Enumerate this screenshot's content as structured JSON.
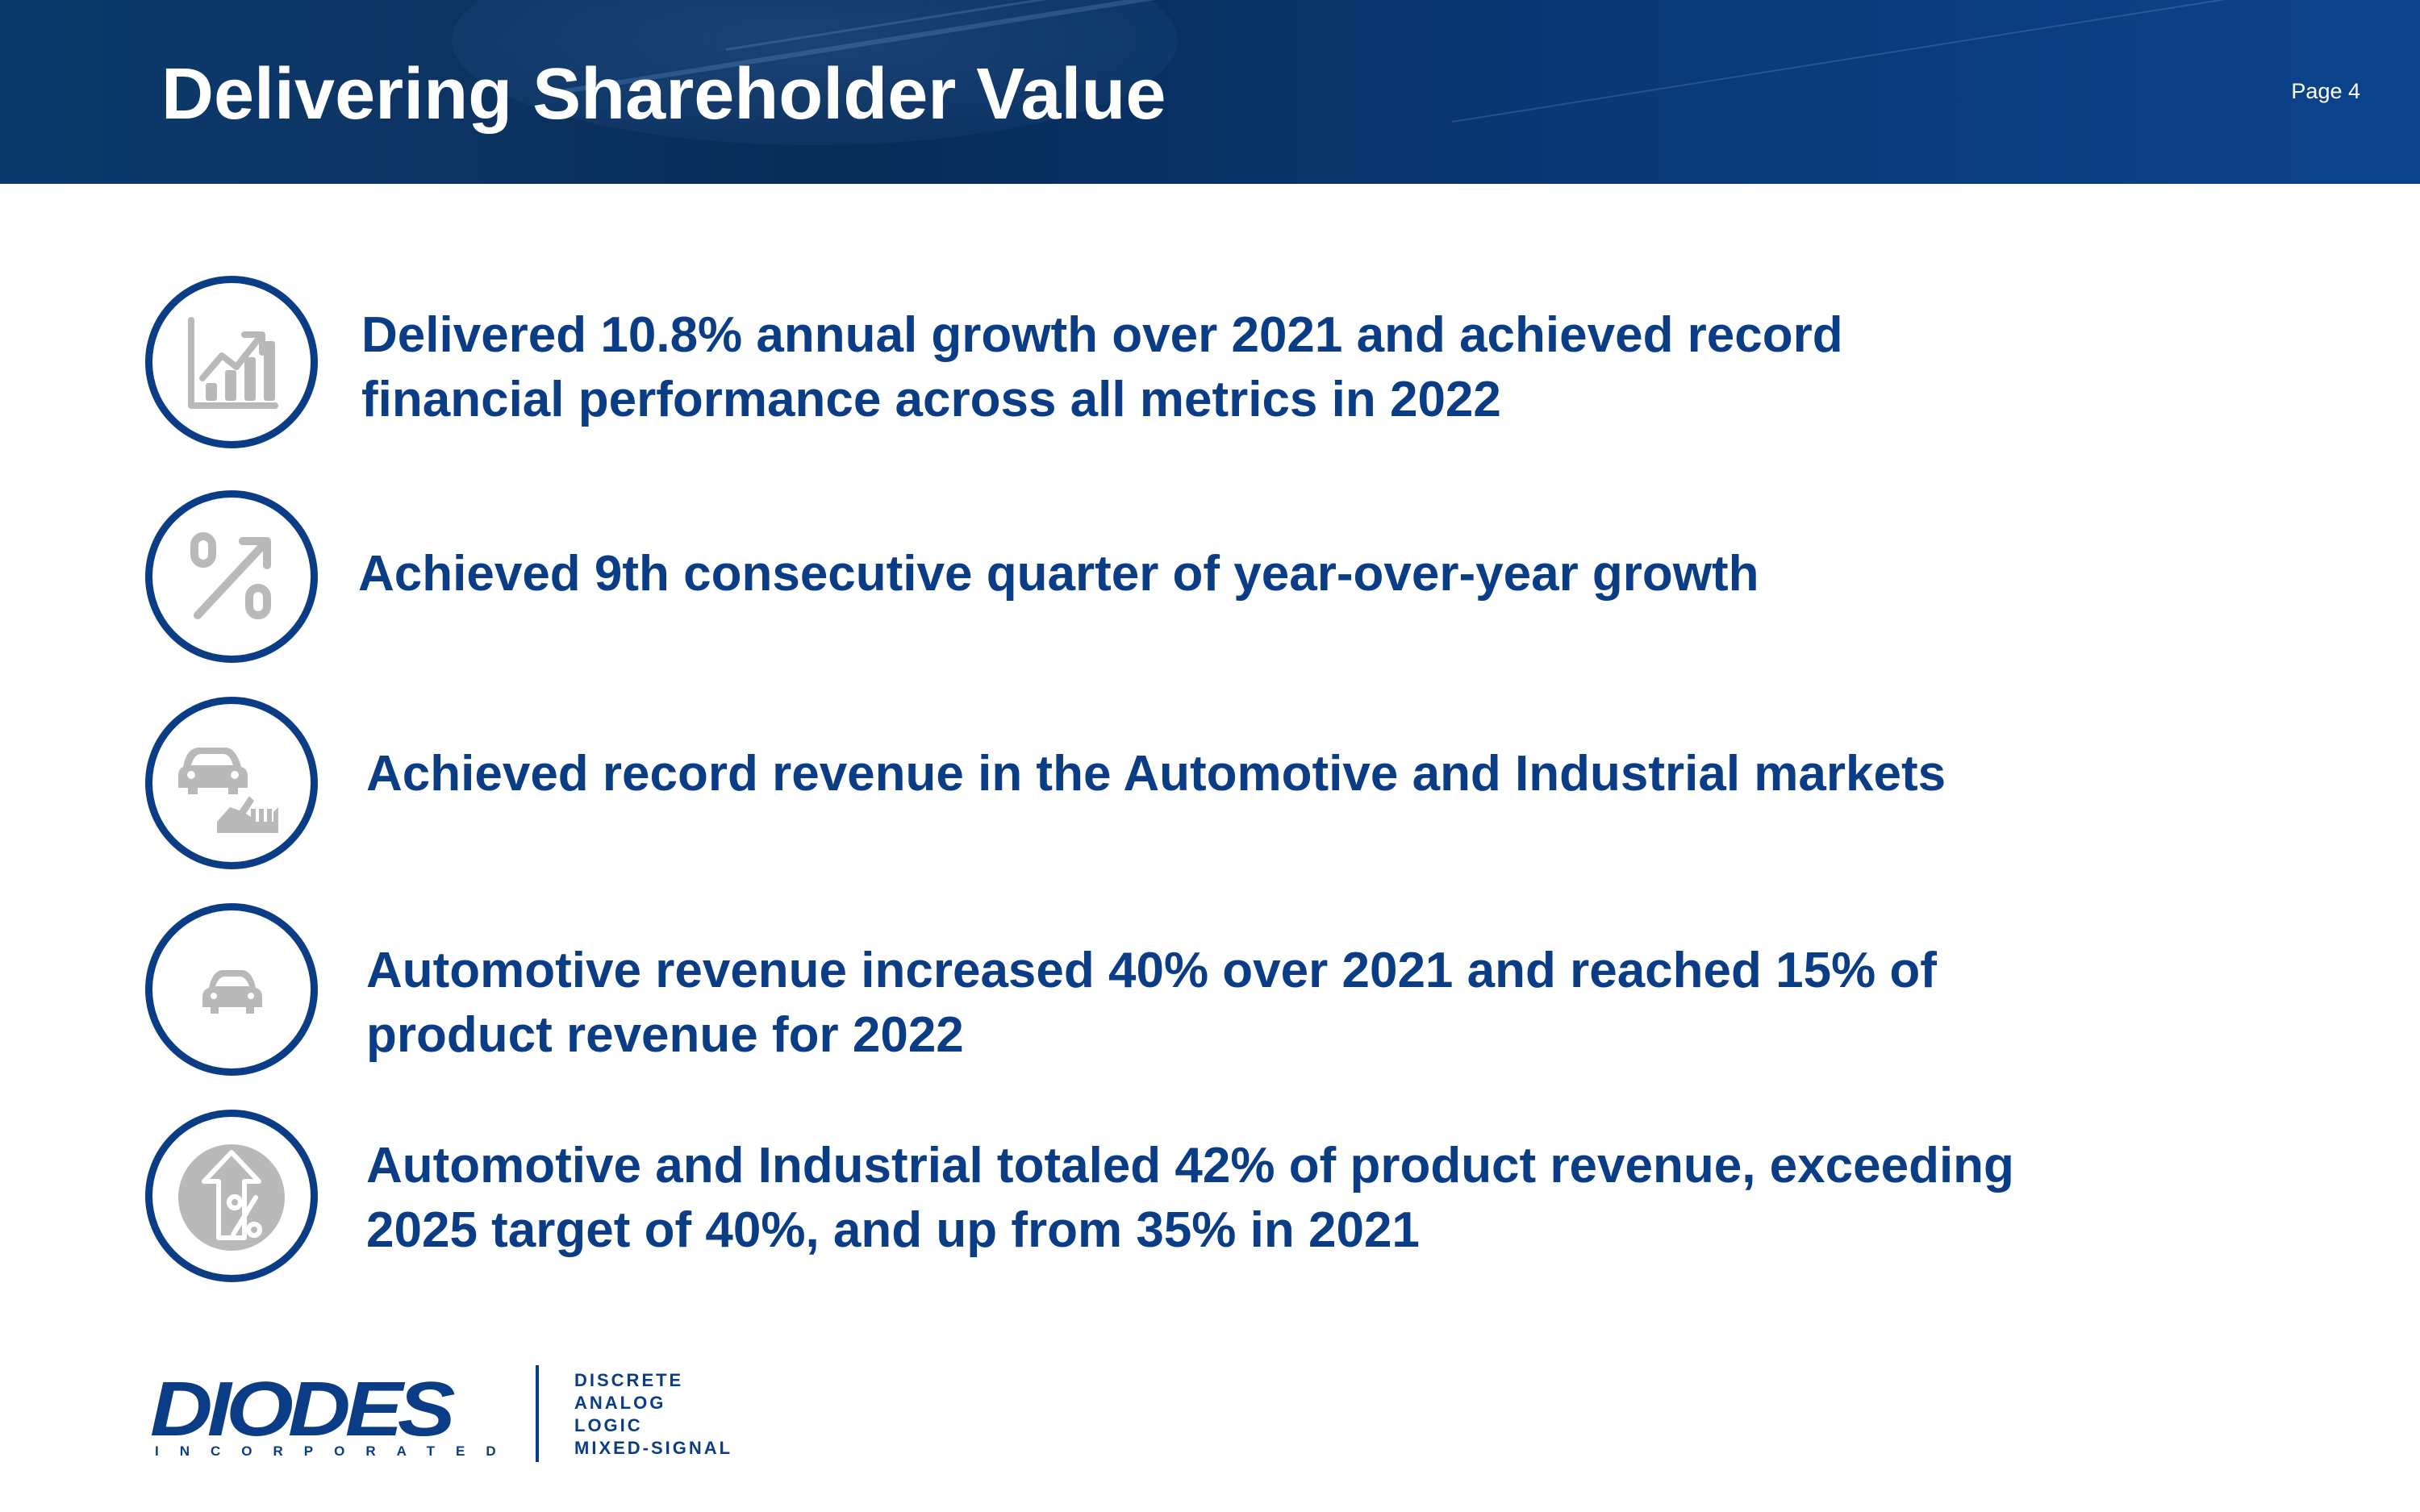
{
  "header": {
    "title": "Delivering Shareholder Value",
    "page_label": "Page 4"
  },
  "items": [
    {
      "icon": "bar-chart-growth-icon",
      "text": "Delivered 10.8% annual growth over 2021 and achieved record\nfinancial performance across all metrics in 2022"
    },
    {
      "icon": "percent-growth-icon",
      "text": "Achieved 9th consecutive quarter of year-over-year growth"
    },
    {
      "icon": "car-and-factory-icon",
      "text": "Achieved record revenue in the Automotive and Industrial markets"
    },
    {
      "icon": "car-icon",
      "text": "Automotive revenue increased 40% over 2021 and reached 15% of\nproduct revenue for 2022"
    },
    {
      "icon": "percent-up-arrow-icon",
      "text": "Automotive and Industrial totaled 42% of product revenue, exceeding\n2025 target of 40%, and up from 35% in 2021"
    }
  ],
  "footer": {
    "logo_word": "DIODES",
    "logo_sub": "INCORPORATED",
    "taglines": [
      "DISCRETE",
      "ANALOG",
      "LOGIC",
      "MIXED-SIGNAL"
    ]
  },
  "colors": {
    "brand_blue": "#0b3d86",
    "icon_gray": "#b9b9b9",
    "header_dark": "#082b57"
  }
}
